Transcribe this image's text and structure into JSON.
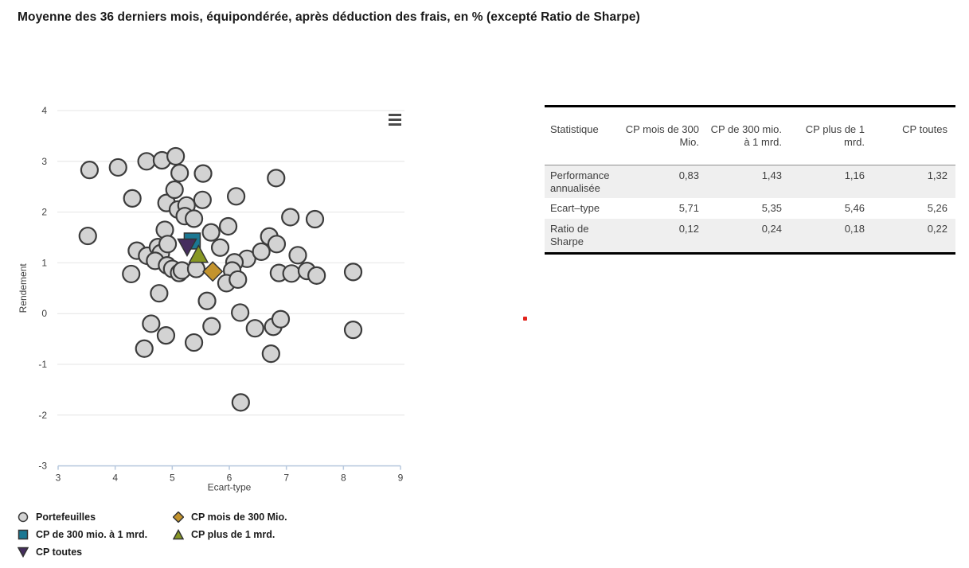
{
  "title": "Moyenne des 36 derniers mois, équipondérée, après déduction des frais, en % (excepté Ratio de Sharpe)",
  "chart_data": {
    "type": "scatter",
    "xlabel": "Ecart-type",
    "ylabel": "Rendement",
    "xlim": [
      3,
      9
    ],
    "ylim": [
      -3,
      4
    ],
    "x_ticks": [
      3,
      4,
      5,
      6,
      7,
      8,
      9
    ],
    "y_ticks": [
      4,
      3,
      2,
      1,
      0,
      -1,
      -2,
      -3
    ],
    "grid": "horizontal",
    "grid_color": "#e4e4e4",
    "axis_color": "#b7c9de",
    "tick_text_color": "#3f3f3f",
    "series": [
      {
        "name": "Portefeuilles",
        "key": "portefeuilles",
        "marker": "circle",
        "fill": "#d3d3d3",
        "stroke": "#3c3c3c",
        "points": [
          [
            3.55,
            2.83
          ],
          [
            4.05,
            2.88
          ],
          [
            4.55,
            3.0
          ],
          [
            4.82,
            3.02
          ],
          [
            5.06,
            3.1
          ],
          [
            5.13,
            2.77
          ],
          [
            5.54,
            2.76
          ],
          [
            6.82,
            2.67
          ],
          [
            4.3,
            2.27
          ],
          [
            4.9,
            2.18
          ],
          [
            5.04,
            2.44
          ],
          [
            5.1,
            2.05
          ],
          [
            5.25,
            2.13
          ],
          [
            5.53,
            2.24
          ],
          [
            6.12,
            2.31
          ],
          [
            5.22,
            1.92
          ],
          [
            5.38,
            1.87
          ],
          [
            7.07,
            1.9
          ],
          [
            7.5,
            1.86
          ],
          [
            3.52,
            1.53
          ],
          [
            4.87,
            1.65
          ],
          [
            5.68,
            1.6
          ],
          [
            5.98,
            1.72
          ],
          [
            6.7,
            1.52
          ],
          [
            4.38,
            1.24
          ],
          [
            4.56,
            1.14
          ],
          [
            4.75,
            1.31
          ],
          [
            4.8,
            1.19
          ],
          [
            4.92,
            1.37
          ],
          [
            5.84,
            1.3
          ],
          [
            6.31,
            1.08
          ],
          [
            6.56,
            1.22
          ],
          [
            6.83,
            1.37
          ],
          [
            7.2,
            1.15
          ],
          [
            4.7,
            1.04
          ],
          [
            4.91,
            0.95
          ],
          [
            6.09,
            1.01
          ],
          [
            4.28,
            0.78
          ],
          [
            5.0,
            0.88
          ],
          [
            5.12,
            0.8
          ],
          [
            5.17,
            0.85
          ],
          [
            5.42,
            0.88
          ],
          [
            6.05,
            0.85
          ],
          [
            6.87,
            0.8
          ],
          [
            7.09,
            0.79
          ],
          [
            7.36,
            0.84
          ],
          [
            7.53,
            0.75
          ],
          [
            8.17,
            0.82
          ],
          [
            5.95,
            0.6
          ],
          [
            6.15,
            0.67
          ],
          [
            4.77,
            0.4
          ],
          [
            5.61,
            0.25
          ],
          [
            6.19,
            0.02
          ],
          [
            4.63,
            -0.2
          ],
          [
            4.89,
            -0.43
          ],
          [
            5.69,
            -0.25
          ],
          [
            6.45,
            -0.29
          ],
          [
            6.77,
            -0.26
          ],
          [
            6.9,
            -0.11
          ],
          [
            8.17,
            -0.32
          ],
          [
            4.51,
            -0.69
          ],
          [
            5.38,
            -0.57
          ],
          [
            6.73,
            -0.79
          ],
          [
            6.2,
            -1.75
          ]
        ]
      },
      {
        "name": "CP mois de 300 Mio.",
        "key": "cp-mois-de-300-mio",
        "marker": "diamond",
        "fill": "#c3932d",
        "stroke": "#333333",
        "points": [
          [
            5.71,
            0.83
          ]
        ]
      },
      {
        "name": "CP de 300 mio. à 1 mrd.",
        "key": "cp-300-mio-a-1-mrd",
        "marker": "square",
        "fill": "#1b7893",
        "stroke": "#333333",
        "points": [
          [
            5.35,
            1.43
          ]
        ]
      },
      {
        "name": "CP plus de 1 mrd.",
        "key": "cp-plus-de-1-mrd",
        "marker": "triangle-up",
        "fill": "#879724",
        "stroke": "#333333",
        "points": [
          [
            5.46,
            1.16
          ]
        ]
      },
      {
        "name": "CP toutes",
        "key": "cp-toutes",
        "marker": "triangle-down",
        "fill": "#452d5e",
        "stroke": "#333333",
        "points": [
          [
            5.26,
            1.32
          ]
        ]
      }
    ]
  },
  "legend": {
    "items": [
      {
        "key": "portefeuilles",
        "label": "Portefeuilles",
        "marker": "circle",
        "fill": "#d3d3d3",
        "stroke": "#3c3c3c"
      },
      {
        "key": "cp-300-mio-a-1-mrd",
        "label": "CP de 300 mio. à 1 mrd.",
        "marker": "square",
        "fill": "#1b7893",
        "stroke": "#333333"
      },
      {
        "key": "cp-toutes",
        "label": "CP toutes",
        "marker": "triangle-down",
        "fill": "#452d5e",
        "stroke": "#333333"
      },
      {
        "key": "cp-mois-de-300-mio",
        "label": "CP mois de 300 Mio.",
        "marker": "diamond",
        "fill": "#c3932d",
        "stroke": "#333333"
      },
      {
        "key": "cp-plus-de-1-mrd",
        "label": "CP plus de 1 mrd.",
        "marker": "triangle-up",
        "fill": "#879724",
        "stroke": "#333333"
      }
    ]
  },
  "table": {
    "col_headers": [
      "Statistique",
      "CP mois de 300 Mio.",
      "CP de 300 mio. à 1 mrd.",
      "CP plus de 1 mrd.",
      "CP toutes"
    ],
    "rows": [
      {
        "label": "Performance annualisée",
        "values": [
          "0,83",
          "1,43",
          "1,16",
          "1,32"
        ]
      },
      {
        "label": "Ecart–type",
        "values": [
          "5,71",
          "5,35",
          "5,46",
          "5,26"
        ]
      },
      {
        "label": "Ratio de Sharpe",
        "values": [
          "0,12",
          "0,24",
          "0,18",
          "0,22"
        ]
      }
    ]
  },
  "icons": {
    "chart_menu": "hamburger-icon",
    "annotation": "red-dot"
  },
  "colors": {
    "row_shade": "#efefef",
    "table_border": "#000000",
    "header_rule": "#8f8f8f",
    "red_dot": "#e2231c",
    "menu_icon": "#4a4a4a"
  }
}
